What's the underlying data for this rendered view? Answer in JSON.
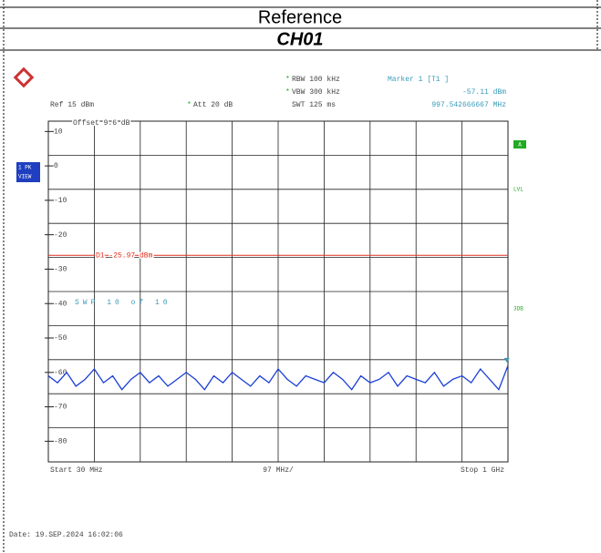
{
  "header": {
    "title": "Reference",
    "channel": "CH01"
  },
  "chart_data": {
    "type": "line",
    "ref_level": "Ref 15 dBm",
    "attenuation": "Att 20 dB",
    "rbw": "RBW 100 kHz",
    "vbw": "VBW 300 kHz",
    "sweep_time": "SWT 125 ms",
    "marker_title": "Marker 1 [T1 ]",
    "marker_level": "-57.11 dBm",
    "marker_freq": "997.542666667 MHz",
    "offset": "Offset 9.6 dB",
    "trace_mode": [
      "1 PK",
      "VIEW"
    ],
    "side_labels": [
      "A",
      "LVL",
      "3DB"
    ],
    "sweep_count": "SWP 10 of 10",
    "display_line": {
      "label": "D1 -25.97 dBm",
      "value": -25.97,
      "color": "#e03020"
    },
    "marker": {
      "x": 997.542666667,
      "y": -57.11,
      "color": "#3a9ab8"
    },
    "start": "Start 30 MHz",
    "span_div": "97 MHz/",
    "stop": "Stop 1 GHz",
    "date": "Date: 19.SEP.2024 16:02:06",
    "xlim": [
      30,
      1000
    ],
    "ylim": [
      -86,
      13
    ],
    "yticks": [
      10,
      0,
      -10,
      -20,
      -30,
      -40,
      -50,
      -60,
      -70,
      -80
    ],
    "x": [
      30,
      49.4,
      68.8,
      88.2,
      107.6,
      127,
      146.4,
      165.8,
      185.2,
      204.6,
      224,
      243.4,
      262.8,
      282.2,
      301.6,
      321,
      340.4,
      359.8,
      379.2,
      398.6,
      418,
      437.4,
      456.8,
      476.2,
      495.6,
      515,
      534.4,
      553.8,
      573.2,
      592.6,
      612,
      631.4,
      650.8,
      670.2,
      689.6,
      709,
      728.4,
      747.8,
      767.2,
      786.6,
      806,
      825.4,
      844.8,
      864.2,
      883.6,
      903,
      922.4,
      941.8,
      961.2,
      980.6,
      1000
    ],
    "series": [
      {
        "name": "1 PK",
        "color": "#1a3fd6",
        "values": [
          -61,
          -63,
          -60,
          -64,
          -62,
          -59,
          -63,
          -61,
          -65,
          -62,
          -60,
          -63,
          -61,
          -64,
          -62,
          -60,
          -62,
          -65,
          -61,
          -63,
          -60,
          -62,
          -64,
          -61,
          -63,
          -59,
          -62,
          -64,
          -61,
          -62,
          -63,
          -60,
          -62,
          -65,
          -61,
          -63,
          -62,
          -60,
          -64,
          -61,
          -62,
          -63,
          -60,
          -64,
          -62,
          -61,
          -63,
          -59,
          -62,
          -65,
          -58
        ]
      }
    ]
  }
}
